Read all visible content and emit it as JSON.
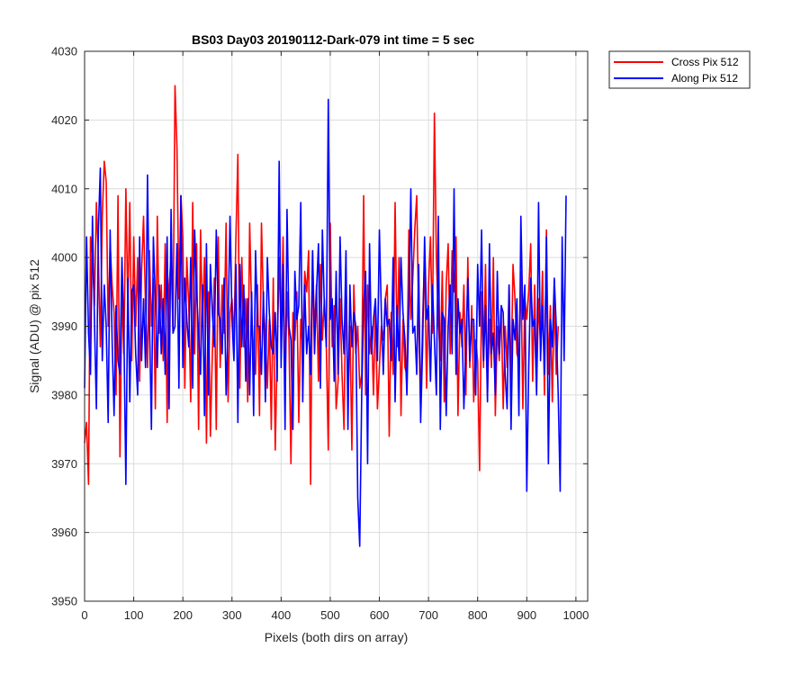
{
  "chart_data": {
    "type": "line",
    "title": "BS03 Day03 20190112-Dark-079 int time = 5 sec",
    "xlabel": "Pixels (both dirs on array)",
    "ylabel": "Signal (ADU) @ pix 512",
    "xlim": [
      0,
      1024
    ],
    "ylim": [
      3950,
      4030
    ],
    "xticks": [
      0,
      100,
      200,
      300,
      400,
      500,
      600,
      700,
      800,
      900,
      1000
    ],
    "yticks": [
      3950,
      3960,
      3970,
      3980,
      3990,
      4000,
      4010,
      4020,
      4030
    ],
    "grid": true,
    "legend_position": "outside-top-right",
    "series": [
      {
        "name": "Cross Pix 512",
        "color": "#ff0000",
        "sample_step": 4,
        "x_start": 0,
        "values": [
          3973,
          3976,
          3967,
          4003,
          4000,
          3993,
          4008,
          4000,
          3987,
          4006,
          4014,
          4011,
          3990,
          4002,
          3996,
          3992,
          3980,
          4009,
          3971,
          3995,
          3986,
          4010,
          3993,
          4008,
          3985,
          4003,
          3990,
          4000,
          3982,
          3998,
          4006,
          3993,
          3984,
          4001,
          3990,
          3997,
          3978,
          4006,
          3989,
          3996,
          3985,
          4002,
          3976,
          3996,
          4000,
          3989,
          4025,
          4016,
          3994,
          4009,
          4003,
          3981,
          4000,
          3993,
          3979,
          4008,
          3986,
          4002,
          3975,
          4004,
          3990,
          4000,
          3973,
          3995,
          3974,
          3986,
          3997,
          3975,
          4003,
          3984,
          3996,
          3989,
          4005,
          3979,
          3992,
          3994,
          3988,
          4003,
          4015,
          3981,
          4000,
          3987,
          3994,
          3979,
          4005,
          3992,
          3986,
          3983,
          3996,
          3977,
          4005,
          3993,
          3989,
          3981,
          3991,
          3975,
          3997,
          3972,
          3986,
          4000,
          3989,
          4003,
          3981,
          3995,
          3988,
          3970,
          3992,
          3988,
          3995,
          3976,
          3991,
          3987,
          3998,
          3995,
          4001,
          3967,
          4001,
          3989,
          3996,
          3982,
          3999,
          3988,
          3994,
          3987,
          3972,
          4005,
          3987,
          3993,
          3978,
          3982,
          3994,
          3983,
          3975,
          3997,
          3980,
          3990,
          3972,
          3996,
          3986,
          3990,
          3981,
          3983,
          4009,
          3980,
          3996,
          3986,
          3990,
          3980,
          3993,
          3978,
          3984,
          3990,
          3988,
          3994,
          3996,
          3974,
          3992,
          3983,
          4008,
          3987,
          4000,
          3977,
          3991,
          3984,
          3983,
          4004,
          3991,
          3997,
          4004,
          4009,
          3991,
          3978,
          3991,
          4000,
          3981,
          3996,
          4003,
          3989,
          4021,
          4000,
          3991,
          3985,
          3998,
          3979,
          3996,
          4002,
          3986,
          4001,
          3995,
          4003,
          3977,
          3992,
          3987,
          3996,
          3980,
          4000,
          3984,
          3993,
          3979,
          3988,
          3985,
          3969,
          3995,
          3984,
          3999,
          3980,
          3991,
          3984,
          4000,
          3977,
          3990,
          3985,
          3993,
          3978,
          3990,
          3984,
          3996,
          3982,
          3999,
          3994,
          3986,
          3985,
          3998,
          3978,
          3994,
          3991,
          3995,
          4002,
          3982,
          3996,
          3981,
          3994,
          3987,
          3998,
          3980,
          4004,
          3983,
          3993,
          3979,
          3995,
          3983,
          3990
        ]
      },
      {
        "name": "Along Pix 512",
        "color": "#0000ff",
        "sample_step": 4,
        "x_start": 0,
        "values": [
          3981,
          4003,
          3989,
          3983,
          4006,
          3991,
          3978,
          4004,
          4013,
          3985,
          3996,
          3990,
          3976,
          4004,
          3988,
          3977,
          3993,
          3985,
          3983,
          4000,
          3989,
          3967,
          3997,
          3979,
          3995,
          3996,
          3986,
          3980,
          4003,
          3985,
          3994,
          3984,
          4012,
          3991,
          3975,
          4003,
          3994,
          3984,
          3996,
          3986,
          3994,
          3983,
          4003,
          3978,
          4007,
          3989,
          3990,
          4002,
          3981,
          4009,
          3984,
          3997,
          3991,
          3987,
          4000,
          3981,
          4004,
          3995,
          3989,
          3983,
          3996,
          3977,
          4002,
          3980,
          3999,
          3992,
          3987,
          4004,
          3992,
          3991,
          3986,
          3997,
          3980,
          3990,
          4006,
          3991,
          3985,
          3999,
          3976,
          3999,
          3987,
          3996,
          3982,
          3994,
          3980,
          3995,
          3977,
          4001,
          3990,
          3990,
          3983,
          3995,
          3979,
          4000,
          3992,
          3987,
          3986,
          3992,
          3982,
          4014,
          3984,
          3999,
          3975,
          4007,
          3990,
          3988,
          3975,
          3998,
          3991,
          3993,
          4008,
          3979,
          3996,
          3986,
          3990,
          3983,
          4001,
          3986,
          3995,
          4002,
          3981,
          4004,
          3993,
          3987,
          4023,
          3991,
          3994,
          3982,
          3998,
          3983,
          4003,
          3991,
          3986,
          4001,
          3975,
          3996,
          3987,
          3992,
          3990,
          3965,
          3958,
          3980,
          3993,
          3998,
          3970,
          4002,
          3986,
          3991,
          3994,
          3985,
          4004,
          3992,
          3983,
          3994,
          3990,
          3991,
          3985,
          4000,
          3979,
          3993,
          3985,
          4000,
          3992,
          3988,
          3980,
          3993,
          4010,
          3989,
          3990,
          3983,
          3999,
          3976,
          3987,
          4003,
          3991,
          3993,
          3982,
          3996,
          3988,
          3980,
          4006,
          3975,
          3992,
          3991,
          3977,
          3990,
          3996,
          3986,
          4010,
          3983,
          3994,
          3989,
          3991,
          3978,
          3987,
          3997,
          3985,
          3991,
          3991,
          3980,
          3999,
          3990,
          4004,
          3985,
          3993,
          3979,
          4002,
          3986,
          3989,
          3980,
          3998,
          3986,
          3993,
          3992,
          3983,
          3978,
          3996,
          3975,
          3991,
          3988,
          3994,
          3977,
          4006,
          3991,
          3996,
          3966,
          3984,
          3997,
          3990,
          3991,
          3980,
          4008,
          3985,
          3993,
          3983,
          4003,
          3970,
          3991,
          3987,
          3997,
          3990,
          3980,
          3966,
          4003,
          3985,
          4009
        ]
      }
    ]
  }
}
